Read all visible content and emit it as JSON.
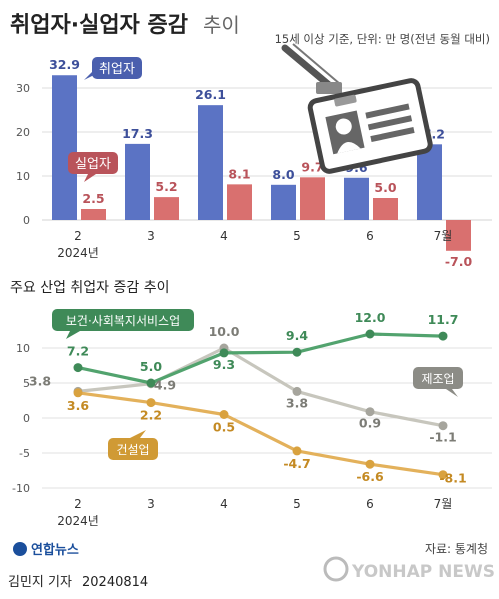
{
  "header": {
    "title_main": "취업자·실업자 증감",
    "title_sub": "추이",
    "note": "15세 이상 기준, 단위: 만 명(전년 동월 대비)"
  },
  "chart_data": [
    {
      "type": "bar",
      "title": "",
      "categories": [
        "2",
        "3",
        "4",
        "5",
        "6",
        "7월"
      ],
      "category_sublabel": "2024년",
      "ylim": [
        -10,
        35
      ],
      "yticks": [
        0,
        10,
        20,
        30
      ],
      "series": [
        {
          "name": "취업자",
          "color": "#5b73c4",
          "values": [
            32.9,
            17.3,
            26.1,
            8.0,
            9.6,
            17.2
          ]
        },
        {
          "name": "실업자",
          "color": "#d9706f",
          "values": [
            2.5,
            5.2,
            8.1,
            9.7,
            5.0,
            -7.0
          ]
        }
      ],
      "value_labels": {
        "취업자": [
          "32.9",
          "17.3",
          "26.1",
          "8.0",
          "9.6",
          "17.2"
        ],
        "실업자": [
          "2.5",
          "5.2",
          "8.1",
          "9.7",
          "5.0",
          "-7.0"
        ]
      },
      "grid": true
    },
    {
      "type": "line",
      "title": "주요 산업 취업자 증감 추이",
      "categories": [
        "2",
        "3",
        "4",
        "5",
        "6",
        "7월"
      ],
      "category_sublabel": "2024년",
      "ylim": [
        -10,
        15
      ],
      "yticks": [
        -10,
        -5,
        0,
        5,
        10
      ],
      "series": [
        {
          "name": "보건·사회복지서비스업",
          "color": "#52a36e",
          "values": [
            7.2,
            5.0,
            9.3,
            9.4,
            12.0,
            11.7
          ],
          "labels": [
            "7.2",
            "5.0",
            "9.3",
            "9.4",
            "12.0",
            "11.7"
          ]
        },
        {
          "name": "제조업",
          "color": "#c7c6bd",
          "values": [
            3.8,
            4.9,
            10.0,
            3.8,
            0.9,
            -1.1
          ],
          "labels": [
            "3.8",
            "4.9",
            "10.0",
            "3.8",
            "0.9",
            "-1.1"
          ]
        },
        {
          "name": "건설업",
          "color": "#e3b15b",
          "values": [
            3.6,
            2.2,
            0.5,
            -4.7,
            -6.6,
            -8.1
          ],
          "labels": [
            "3.6",
            "2.2",
            "0.5",
            "-4.7",
            "-6.6",
            "-8.1"
          ]
        }
      ],
      "grid": true
    }
  ],
  "footer": {
    "logo_text": "연합뉴스",
    "source": "자료: 통계청",
    "reporter": "김민지 기자",
    "date": "20240814",
    "watermark": "YONHAP NEWS"
  },
  "colors": {
    "title": "#222222",
    "grid": "#d9d9d9",
    "text": "#333333"
  }
}
